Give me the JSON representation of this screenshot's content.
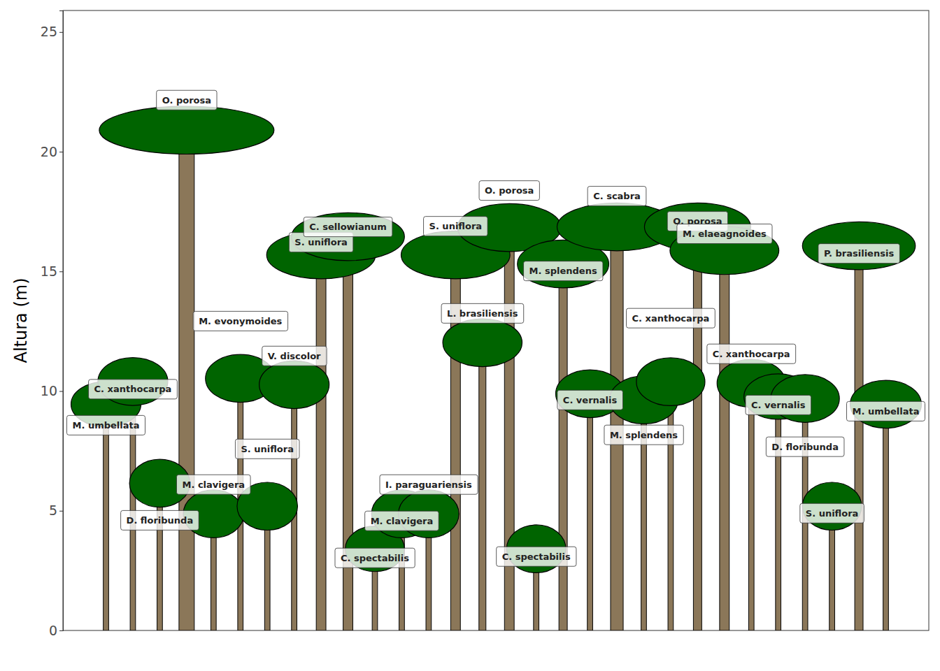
{
  "chart_data": {
    "type": "tree_profile",
    "y_label": "Altura (m)",
    "x": [
      1,
      2,
      3,
      4,
      5,
      6,
      7,
      8,
      9,
      10,
      11,
      12,
      13,
      14,
      15,
      16,
      17,
      18,
      19,
      20,
      21,
      22,
      23,
      24,
      25,
      26,
      27,
      28,
      29,
      30
    ],
    "labels": [
      "M. umbellata",
      "C. xanthocarpa",
      "D. floribunda",
      "O. porosa",
      "M. clavigera",
      "M. evonymoides",
      "S. uniflora",
      "V. discolor",
      "S. uniflora",
      "C. sellowianum",
      "C. spectabilis",
      "M. clavigera",
      "I. paraguariensis",
      "S. uniflora",
      "L. brasiliensis",
      "O. porosa",
      "C. spectabilis",
      "M. splendens",
      "C. vernalis",
      "C. scabra",
      "M. splendens",
      "C. xanthocarpa",
      "O. porosa",
      "M. elaeagnoides",
      "C. xanthocarpa",
      "C. vernalis",
      "D. floribunda",
      "S. uniflora",
      "P. brasiliensis",
      "M. umbellata"
    ],
    "values": [
      9.45,
      10.4,
      6.15,
      20.9,
      4.87,
      10.53,
      5.19,
      10.27,
      15.69,
      16.45,
      3.41,
      4.87,
      4.87,
      15.69,
      12.02,
      16.83,
      3.41,
      15.31,
      9.89,
      16.86,
      9.63,
      10.39,
      16.86,
      15.87,
      10.33,
      9.77,
      9.69,
      5.19,
      16.07,
      9.45
    ],
    "crown_width": [
      2.6,
      2.6,
      2.25,
      6.5,
      2.25,
      2.6,
      2.25,
      2.6,
      4.05,
      4.2,
      2.2,
      2.25,
      2.25,
      4.05,
      2.95,
      3.85,
      2.2,
      3.4,
      2.55,
      4.45,
      2.55,
      2.55,
      3.95,
      4.05,
      2.55,
      2.55,
      2.55,
      2.2,
      4.2,
      2.65
    ],
    "crown_depth": [
      1.9,
      2.0,
      2.0,
      2.0,
      2.0,
      2.0,
      2.0,
      2.0,
      2.0,
      2.0,
      1.9,
      2.0,
      2.0,
      2.0,
      2.0,
      2.0,
      2.0,
      2.0,
      2.0,
      2.0,
      2.0,
      2.0,
      2.0,
      2.0,
      2.0,
      1.9,
      2.0,
      2.0,
      2.0,
      2.0
    ],
    "trunk_width": [
      0.2,
      0.2,
      0.2,
      0.57,
      0.2,
      0.2,
      0.2,
      0.2,
      0.36,
      0.36,
      0.2,
      0.2,
      0.2,
      0.36,
      0.26,
      0.36,
      0.2,
      0.31,
      0.2,
      0.47,
      0.2,
      0.2,
      0.31,
      0.36,
      0.2,
      0.2,
      0.2,
      0.2,
      0.31,
      0.2
    ],
    "color": "#006400",
    "xlim": [
      -0.6,
      31.6
    ],
    "ylim": [
      0,
      25.9
    ],
    "yticks": [
      0,
      5,
      10,
      15,
      20,
      25
    ],
    "tick_labels": "y",
    "grid": false
  }
}
